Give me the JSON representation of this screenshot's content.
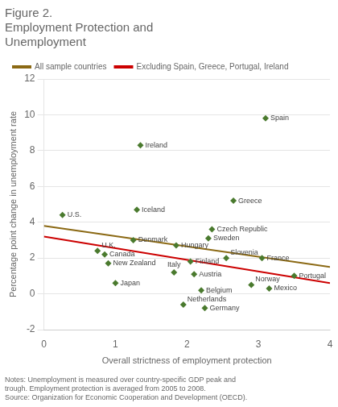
{
  "chart_data": {
    "type": "scatter",
    "title": [
      "Figure 2.",
      "Employment Protection and",
      "Unemployment"
    ],
    "x_label": "Overall strictness of employment protection",
    "y_label": "Percentage point change in unemployment rate",
    "notes": "Notes: Unemployment is measured over country-specific GDP peak and\ntrough. Employment protection is averaged from 2005 to 2008.\nSource: Organization for Economic Cooperation and Development (OECD).",
    "xlim": [
      0,
      4
    ],
    "ylim": [
      -2,
      12
    ],
    "xticks": [
      0,
      1,
      2,
      3,
      4
    ],
    "yticks": [
      -2,
      0,
      2,
      4,
      6,
      8,
      10,
      12
    ],
    "grid": "y",
    "legend": "upper left",
    "series": [
      {
        "type": "scatter",
        "color": "#4a7a2e",
        "marker": "diamond",
        "point_labels": [
          "U.S.",
          "U.K.",
          "Canada",
          "New Zealand",
          "Japan",
          "Denmark",
          "Iceland",
          "Ireland",
          "Hungary",
          "Italy",
          "Netherlands",
          "Finland",
          "Austria",
          "Belgium",
          "Germany",
          "Sweden",
          "Czech Republic",
          "Slovenia",
          "Greece",
          "Norway",
          "France",
          "Mexico",
          "Portugal",
          "Spain"
        ],
        "x": [
          0.26,
          0.75,
          0.85,
          0.9,
          1.0,
          1.25,
          1.3,
          1.35,
          1.85,
          1.82,
          1.95,
          2.05,
          2.1,
          2.2,
          2.25,
          2.3,
          2.35,
          2.55,
          2.65,
          2.9,
          3.05,
          3.15,
          3.5,
          3.1
        ],
        "values": [
          4.4,
          2.4,
          2.2,
          1.7,
          0.6,
          3.0,
          4.7,
          8.3,
          2.7,
          1.2,
          -0.6,
          1.8,
          1.1,
          0.2,
          -0.8,
          3.1,
          3.6,
          2.0,
          5.2,
          0.5,
          2.0,
          0.3,
          1.0,
          9.8
        ]
      },
      {
        "type": "line",
        "name": "All sample countries",
        "color": "#8B6914",
        "line_style": "solid",
        "x": [
          0.0,
          4.0
        ],
        "values": [
          3.8,
          1.5
        ]
      },
      {
        "type": "line",
        "name": "Excluding Spain, Greece, Portugal, Ireland",
        "color": "#cc0000",
        "line_style": "solid",
        "x": [
          0.0,
          4.0
        ],
        "values": [
          3.2,
          0.6
        ]
      }
    ]
  }
}
